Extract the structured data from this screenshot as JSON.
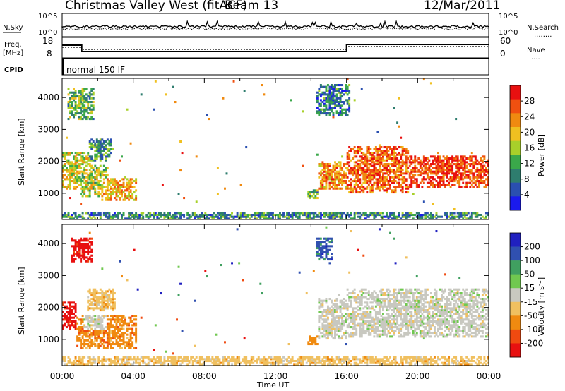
{
  "header": {
    "title": "Christmas Valley West (fitACF)",
    "beam": "Beam 13",
    "date": "12/Mar/2011"
  },
  "strips": {
    "nsky_label": "N.Sky",
    "nsearch_label": "N.Search",
    "nsearch_key": "........",
    "n_ticks_left": [
      "10^5",
      "10^0"
    ],
    "n_ticks_right": [
      "10^5",
      "10^0"
    ],
    "freq_label_1": "Freq.",
    "freq_label_2": "[MHz]",
    "freq_ticks": [
      "18",
      "8"
    ],
    "nave_label": "Nave",
    "nave_key": "....",
    "nave_ticks": [
      "60",
      "0"
    ],
    "cpid_label": "CPID",
    "cpid_value": "normal 150 IF"
  },
  "colors": {
    "power_scale": [
      "#1a1aee",
      "#2a4fb0",
      "#2e7d6e",
      "#3aa84a",
      "#a8d02a",
      "#f0c020",
      "#f08a10",
      "#f05010",
      "#e81010"
    ],
    "velocity_scale": [
      "#e81010",
      "#f04a10",
      "#f08a10",
      "#f0c060",
      "#c8c8c0",
      "#70c850",
      "#40a060",
      "#3050b0",
      "#2020c0"
    ],
    "ground_gray": "#c8c8c0"
  },
  "chart_data": [
    {
      "type": "heatmap",
      "panel": "power",
      "ylabel": "Slant Range [km]",
      "y_ticks": [
        "4000",
        "3000",
        "2000",
        "1000"
      ],
      "y_tick_values": [
        4000,
        3000,
        2000,
        1000
      ],
      "ylim": [
        180,
        4600
      ],
      "xlim_hours": [
        0,
        24
      ],
      "colorbar_label": "Power [dB]",
      "colorbar_ticks": [
        "28",
        "24",
        "20",
        "16",
        "12",
        "8",
        "4"
      ],
      "colorbar_values": [
        28,
        24,
        20,
        16,
        12,
        8,
        4
      ],
      "colorbar_range": [
        0,
        30
      ],
      "regions": [
        {
          "t0": 0.0,
          "t1": 1.6,
          "r0": 1100,
          "r1": 2300,
          "level": 17
        },
        {
          "t0": 1.0,
          "t1": 2.6,
          "r0": 900,
          "r1": 1900,
          "level": 15
        },
        {
          "t0": 2.2,
          "t1": 4.2,
          "r0": 750,
          "r1": 1500,
          "level": 20
        },
        {
          "t0": 1.5,
          "t1": 2.8,
          "r0": 2000,
          "r1": 2700,
          "level": 10
        },
        {
          "t0": 0.0,
          "t1": 24.0,
          "r0": 200,
          "r1": 420,
          "level": 9
        },
        {
          "t0": 13.8,
          "t1": 14.4,
          "r0": 850,
          "r1": 1150,
          "level": 12
        },
        {
          "t0": 14.4,
          "t1": 16.0,
          "r0": 1100,
          "r1": 2000,
          "level": 22
        },
        {
          "t0": 16.0,
          "t1": 19.5,
          "r0": 1000,
          "r1": 2500,
          "level": 24
        },
        {
          "t0": 19.5,
          "t1": 24.0,
          "r0": 1200,
          "r1": 2200,
          "level": 26
        },
        {
          "t0": 14.3,
          "t1": 16.2,
          "r0": 3400,
          "r1": 4400,
          "level": 8
        },
        {
          "t0": 0.3,
          "t1": 1.8,
          "r0": 3300,
          "r1": 4300,
          "level": 12
        }
      ]
    },
    {
      "type": "heatmap",
      "panel": "velocity",
      "ylabel": "Slant Range [km]",
      "y_ticks": [
        "4000",
        "3000",
        "2000",
        "1000"
      ],
      "y_tick_values": [
        4000,
        3000,
        2000,
        1000
      ],
      "ylim": [
        180,
        4600
      ],
      "xlim_hours": [
        0,
        24
      ],
      "xlabel": "Time UT",
      "x_ticks": [
        "00:00",
        "04:00",
        "08:00",
        "12:00",
        "16:00",
        "20:00",
        "00:00"
      ],
      "x_tick_hours": [
        0,
        4,
        8,
        12,
        16,
        20,
        24
      ],
      "colorbar_label": "Velocity [m s",
      "colorbar_label_sup": "-1",
      "colorbar_label_end": "]",
      "colorbar_ticks": [
        "200",
        "100",
        "50",
        "15",
        "-15",
        "-50",
        "-100",
        "-200"
      ],
      "regions": [
        {
          "t0": 0.0,
          "t1": 0.8,
          "r0": 1300,
          "r1": 2200,
          "vclass": 0
        },
        {
          "t0": 0.8,
          "t1": 4.2,
          "r0": 700,
          "r1": 1800,
          "vclass": 2
        },
        {
          "t0": 1.2,
          "t1": 2.5,
          "r0": 1300,
          "r1": 1800,
          "vclass": 4
        },
        {
          "t0": 1.4,
          "t1": 3.0,
          "r0": 1900,
          "r1": 2600,
          "vclass": 3
        },
        {
          "t0": 0.0,
          "t1": 24.0,
          "r0": 200,
          "r1": 500,
          "vclass": 3
        },
        {
          "t0": 13.8,
          "t1": 14.4,
          "r0": 800,
          "r1": 1100,
          "vclass": 2
        },
        {
          "t0": 14.4,
          "t1": 16.0,
          "r0": 1000,
          "r1": 2300,
          "vclass": 4
        },
        {
          "t0": 16.0,
          "t1": 24.0,
          "r0": 1050,
          "r1": 2600,
          "vclass": 4
        },
        {
          "t0": 14.3,
          "t1": 15.2,
          "r0": 3500,
          "r1": 4200,
          "vclass": 7
        },
        {
          "t0": 0.5,
          "t1": 1.7,
          "r0": 3400,
          "r1": 4200,
          "vclass": 0
        }
      ]
    }
  ]
}
